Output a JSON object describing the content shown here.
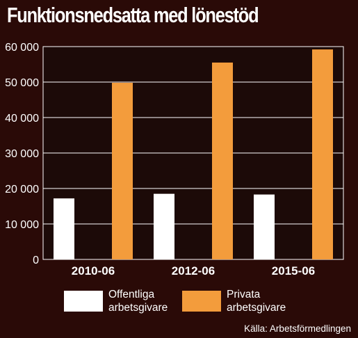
{
  "chart_data": {
    "type": "bar",
    "title": "Funktionsnedsatta med lönestöd",
    "categories": [
      "2010-06",
      "2012-06",
      "2015-06"
    ],
    "series": [
      {
        "name": "Offentliga arbetsgivare",
        "values": [
          17200,
          18500,
          18300
        ],
        "color": "#ffffff"
      },
      {
        "name": "Privata arbetsgivare",
        "values": [
          49800,
          55500,
          59200
        ],
        "color": "#f39c3c"
      }
    ],
    "ylim": [
      0,
      60000
    ],
    "yticks": [
      0,
      10000,
      20000,
      30000,
      40000,
      50000,
      60000
    ],
    "ytick_labels": [
      "0",
      "10 000",
      "20 000",
      "30 000",
      "40 000",
      "50 000",
      "60 000"
    ],
    "grid": true,
    "legend_position": "bottom",
    "source": "Källa: Arbetsförmedlingen"
  },
  "legend": {
    "offentliga_line1": "Offentliga",
    "offentliga_line2": "arbetsgivare",
    "privata_line1": "Privata",
    "privata_line2": "arbetsgivare"
  },
  "colors": {
    "background": "#2a0a07",
    "plot_background": "#1c0a08",
    "grid": "#ffffff"
  }
}
